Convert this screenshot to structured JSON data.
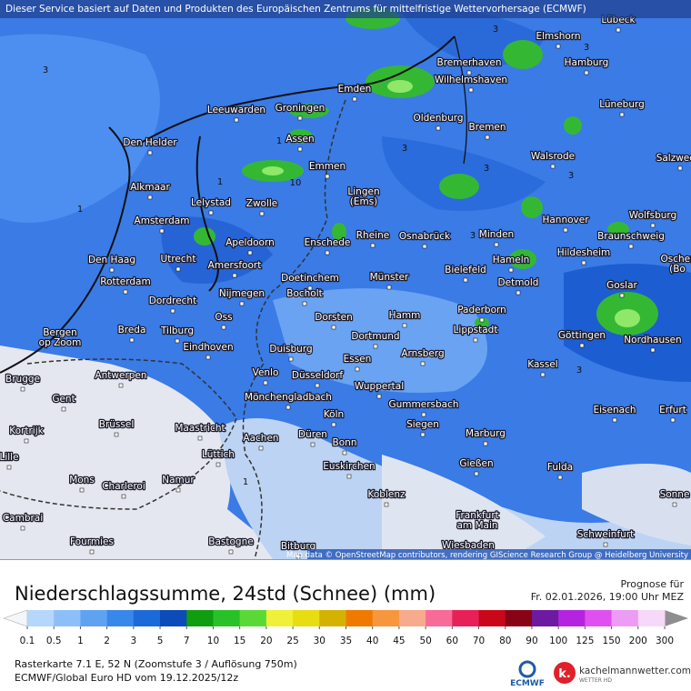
{
  "header": {
    "notice": "Dieser Service basiert auf Daten und Produkten des Europäischen Zentrums für mittelfristige Wettervorhersage (ECMWF)"
  },
  "map": {
    "attribution": "Map data © OpenStreetMap contributors, rendering GIScience Research Group @ Heidelberg University",
    "cities": [
      "Lübeck",
      "Elmshorn",
      "Hamburg",
      "Bremerhaven",
      "Wilhelmshaven",
      "Emden",
      "Leeuwarden",
      "Groningen",
      "Oldenburg",
      "Bremen",
      "Lüneburg",
      "Den Helder",
      "Assen",
      "Walsrode",
      "Salzwedel",
      "Emmen",
      "Alkmaar",
      [
        "Lingen",
        "(Ems)"
      ],
      "Lelystad",
      "Zwolle",
      "Hannover",
      "Wolfsburg",
      "Amsterdam",
      "Enschede",
      "Rheine",
      "Osnabrück",
      "Minden",
      "Braunschweig",
      "Apeldoorn",
      "Hameln",
      "Hildesheim",
      "Den Haag",
      "Utrecht",
      "Amersfoort",
      "Bielefeld",
      [
        "Oscher",
        "(Bo"
      ],
      "Rotterdam",
      "Doetinchem",
      "Detmold",
      "Goslar",
      "Münster",
      "Nijmegen",
      "Bocholt",
      "Dordrecht",
      "Paderborn",
      "Oss",
      "Dorsten",
      "Hamm",
      [
        "Bergen",
        "op Zoom"
      ],
      "Breda",
      "Tilburg",
      "Lippstadt",
      "Dortmund",
      "Göttingen",
      "Nordhausen",
      "Eindhoven",
      "Duisburg",
      "Arnsberg",
      "Essen",
      "Kassel",
      "Antwerpen",
      "Venlo",
      "Düsseldorf",
      "Brugge",
      "Wuppertal",
      "Mönchengladbach",
      "Gent",
      "Gummersbach",
      "Eisenach",
      "Erfurt",
      "Köln",
      "Brüssel",
      "Siegen",
      "Maastricht",
      "Kortrijk",
      "Aachen",
      "Düren",
      "Marburg",
      "Bonn",
      "Lüttich",
      "Lille",
      "Euskirchen",
      "Gießen",
      "Fulda",
      "Mons",
      "Namur",
      "Charleroi",
      "Koblenz",
      "Sonne",
      "Cambrai",
      [
        "Frankfurt",
        "am Main"
      ],
      "Schweinfurt",
      "Fourmies",
      "Bastogne",
      "Bitburg",
      "Wiesbaden"
    ],
    "contour_labels": [
      "3",
      "3",
      "3",
      "3",
      "1",
      "1",
      "10",
      "3",
      "3",
      "1",
      "3",
      "3",
      "1"
    ]
  },
  "legend": {
    "title": "Niederschlagssumme, 24std (Schnee) (mm)",
    "forecast_label": "Prognose für",
    "forecast_time": "Fr. 02.01.2026, 19:00 Uhr MEZ",
    "levels": [
      0.1,
      0.5,
      1,
      2,
      3,
      5,
      7,
      10,
      15,
      20,
      25,
      30,
      35,
      40,
      45,
      50,
      60,
      70,
      80,
      90,
      100,
      125,
      150,
      200,
      300
    ],
    "colors": [
      "#b4d7fb",
      "#8cbff8",
      "#5fa2f2",
      "#3887ea",
      "#1c6ada",
      "#0c4bb8",
      "#0f9e0f",
      "#28c228",
      "#5ad936",
      "#f0f038",
      "#e8dc12",
      "#d4b200",
      "#f07a00",
      "#f7963c",
      "#f8aa8c",
      "#f86a98",
      "#e8205a",
      "#c80818",
      "#880414",
      "#6c1aa0",
      "#b424e0",
      "#e050f0",
      "#ec9cf4",
      "#f6d8f8"
    ]
  },
  "footer": {
    "line1": "Rasterkarte 7.1 E, 52 N  (Zoomstufe 3 / Auflösung 750m)",
    "line2": "ECMWF/Global Euro HD vom  19.12.2025/12z",
    "ecmwf": "ECMWF",
    "brand": "kachelmannwetter.com",
    "brand_sub": "WETTER HD"
  }
}
